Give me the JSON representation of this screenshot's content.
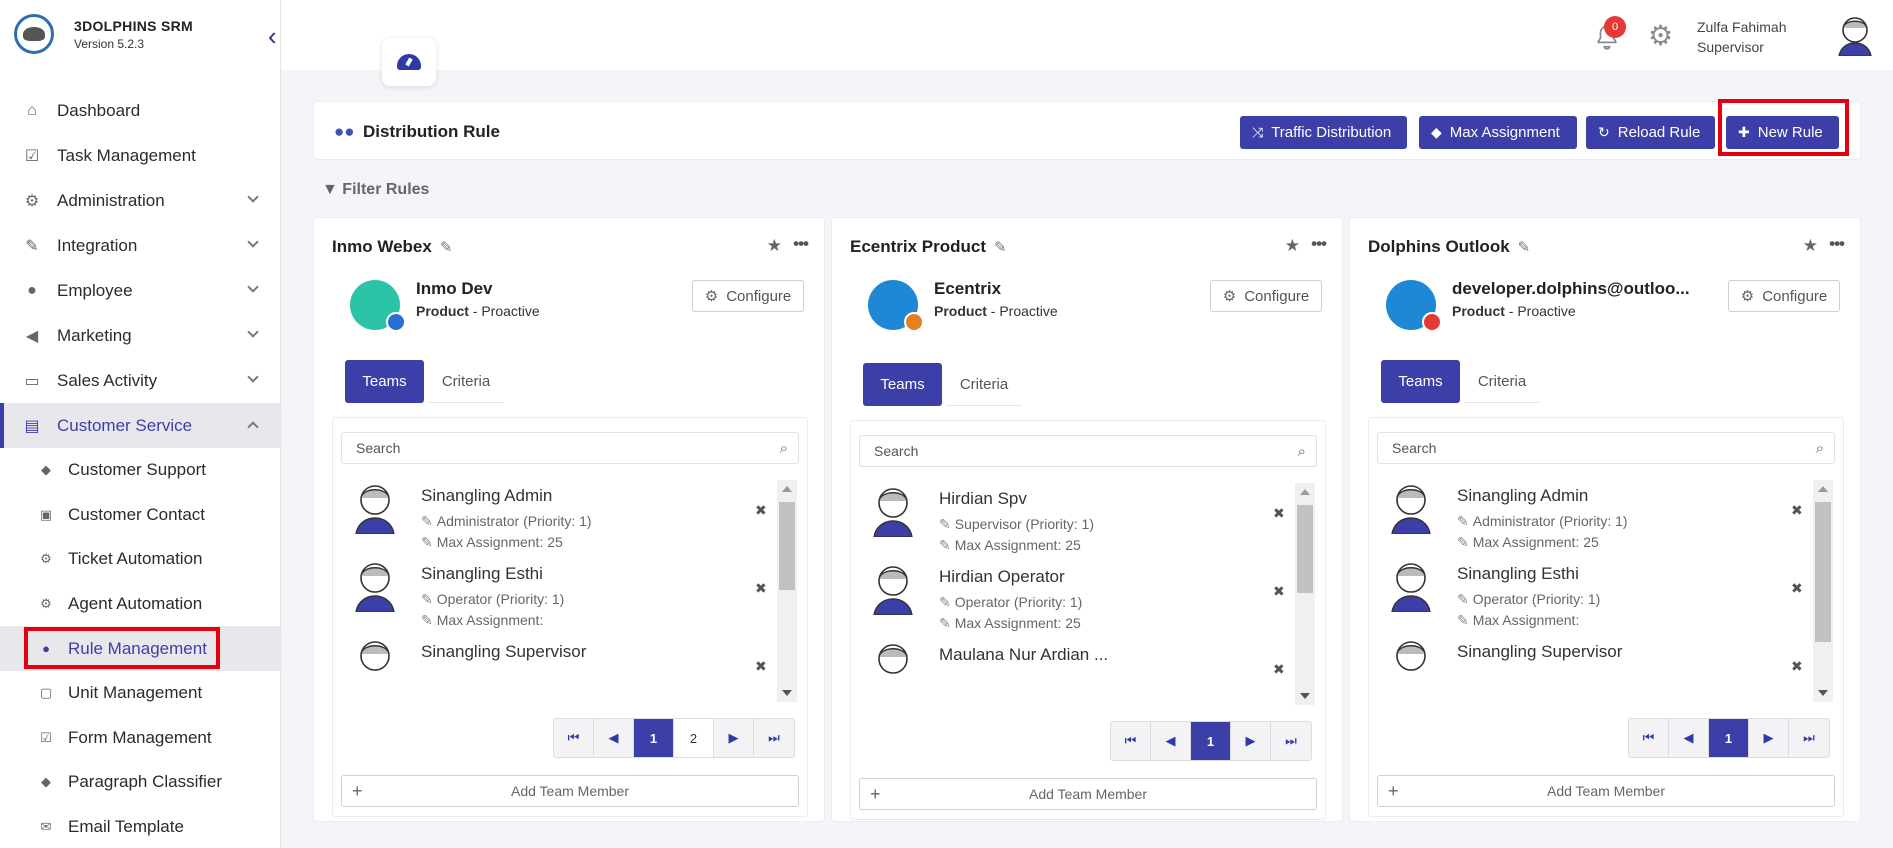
{
  "brand": {
    "name": "3DOLPHINS SRM",
    "version": "Version 5.2.3"
  },
  "sidebar": {
    "items": [
      {
        "label": "Dashboard",
        "icon": "home-icon"
      },
      {
        "label": "Task Management",
        "icon": "checkbox-icon"
      },
      {
        "label": "Administration",
        "icon": "gear-icon"
      },
      {
        "label": "Integration",
        "icon": "plug-icon"
      },
      {
        "label": "Employee",
        "icon": "users-icon"
      },
      {
        "label": "Marketing",
        "icon": "megaphone-icon"
      },
      {
        "label": "Sales Activity",
        "icon": "money-icon"
      },
      {
        "label": "Customer Service",
        "icon": "inbox-icon"
      }
    ],
    "subitems": [
      {
        "label": "Customer Support"
      },
      {
        "label": "Customer Contact"
      },
      {
        "label": "Ticket Automation"
      },
      {
        "label": "Agent Automation"
      },
      {
        "label": "Rule Management"
      },
      {
        "label": "Unit Management"
      },
      {
        "label": "Form Management"
      },
      {
        "label": "Paragraph Classifier"
      },
      {
        "label": "Email Template"
      }
    ]
  },
  "header": {
    "notifications": "0",
    "user_name": "Zulfa Fahimah",
    "user_role": "Supervisor"
  },
  "page": {
    "title": "Distribution Rule",
    "buttons": {
      "traffic": "Traffic Distribution",
      "max": "Max Assignment",
      "reload": "Reload Rule",
      "new": "New Rule"
    },
    "filter": "Filter Rules"
  },
  "common": {
    "configure": "Configure",
    "teams": "Teams",
    "criteria": "Criteria",
    "search_placeholder": "Search",
    "add_member": "Add Team Member"
  },
  "cards": [
    {
      "title": "Inmo Webex",
      "channel_name": "Inmo Dev",
      "channel_type": "Product",
      "channel_mode": " - Proactive",
      "members": [
        {
          "name": "Sinangling Admin",
          "role": "Administrator (Priority: 1)",
          "max": "Max Assignment: 25"
        },
        {
          "name": "Sinangling Esthi",
          "role": "Operator (Priority: 1)",
          "max": "Max Assignment:"
        },
        {
          "name": "Sinangling Supervisor",
          "role": "",
          "max": ""
        }
      ],
      "pages": [
        "1",
        "2"
      ]
    },
    {
      "title": "Ecentrix Product",
      "channel_name": "Ecentrix",
      "channel_type": "Product",
      "channel_mode": " - Proactive",
      "members": [
        {
          "name": "Hirdian Spv",
          "role": "Supervisor (Priority: 1)",
          "max": "Max Assignment: 25"
        },
        {
          "name": "Hirdian Operator",
          "role": "Operator (Priority: 1)",
          "max": "Max Assignment: 25"
        },
        {
          "name": "Maulana Nur Ardian ...",
          "role": "",
          "max": ""
        }
      ],
      "pages": [
        "1"
      ]
    },
    {
      "title": "Dolphins Outlook",
      "channel_name": "developer.dolphins@outloo...",
      "channel_type": "Product",
      "channel_mode": " - Proactive",
      "members": [
        {
          "name": "Sinangling Admin",
          "role": "Administrator (Priority: 1)",
          "max": "Max Assignment: 25"
        },
        {
          "name": "Sinangling Esthi",
          "role": "Operator (Priority: 1)",
          "max": "Max Assignment:"
        },
        {
          "name": "Sinangling Supervisor",
          "role": "",
          "max": ""
        }
      ],
      "pages": [
        "1"
      ]
    }
  ],
  "colors": {
    "accent": "#3c3fa8",
    "highlight": "#e3000f"
  }
}
